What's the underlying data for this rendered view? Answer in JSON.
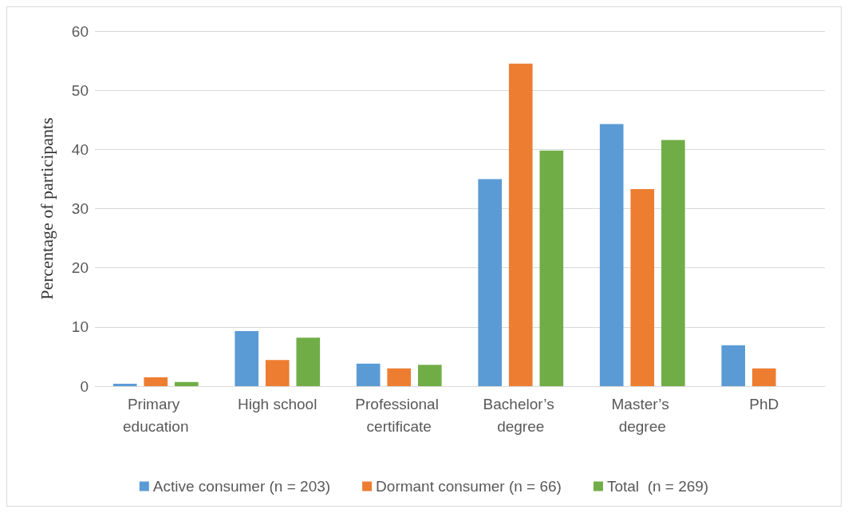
{
  "chart_data": {
    "type": "bar",
    "ylabel": "Percentage of participants",
    "categories": [
      "Primary education",
      "High school",
      "Professional certificate",
      "Bachelor’s degree",
      "Master’s degree",
      "PhD"
    ],
    "series": [
      {
        "name": "Active consumer (n = 203)",
        "color": "#5b9bd5",
        "values": [
          0.4,
          9.3,
          3.8,
          35.0,
          44.3,
          6.9
        ]
      },
      {
        "name": "Dormant consumer (n = 66)",
        "color": "#ed7d31",
        "values": [
          1.5,
          4.4,
          3.0,
          54.5,
          33.3,
          3.0
        ]
      },
      {
        "name": "Total  (n = 269)",
        "color": "#70ad47",
        "values": [
          0.7,
          8.2,
          3.6,
          39.8,
          41.6,
          null
        ]
      }
    ],
    "ylim": [
      0,
      60
    ],
    "yticks": [
      0,
      10,
      20,
      30,
      40,
      50,
      60
    ],
    "grid": "y",
    "legend": "bottom"
  }
}
